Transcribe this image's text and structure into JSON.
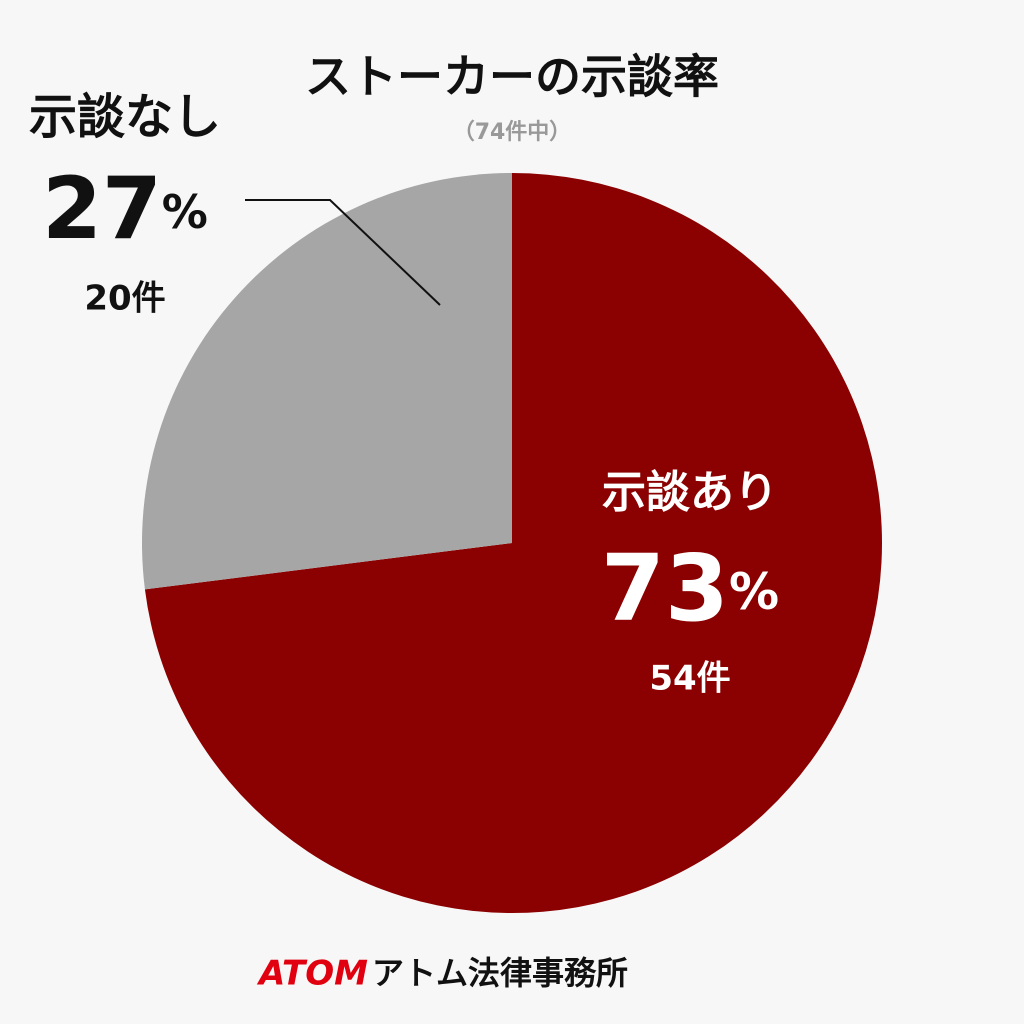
{
  "chart_data": {
    "type": "pie",
    "title": "ストーカーの示談率",
    "subtitle": "（74件中）",
    "categories": [
      "示談あり",
      "示談なし"
    ],
    "values": [
      73,
      27
    ],
    "value_labels": [
      "73%",
      "27%"
    ],
    "count_labels": [
      "54件",
      "20件"
    ],
    "colors": [
      "#8b0000",
      "#a6a6a6"
    ],
    "footer": {
      "brand": "ATOM",
      "name": "アトム法律事務所"
    }
  }
}
